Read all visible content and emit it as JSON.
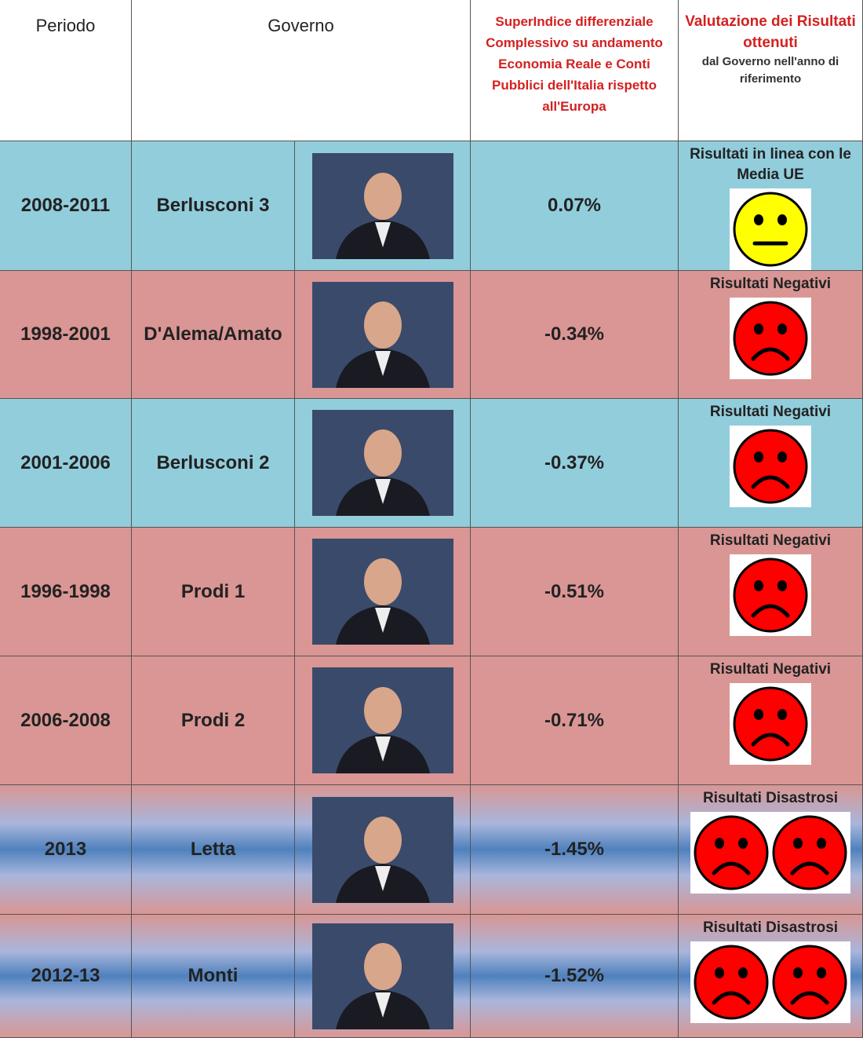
{
  "header": {
    "period": "Periodo",
    "government": "Governo",
    "index": "SuperIndice differenziale Complessivo su andamento Economia Reale e Conti Pubblici dell'Italia rispetto all'Europa",
    "rating_title": "Valutazione dei Risultati ottenuti",
    "rating_note": "dal Governo nell'anno di riferimento"
  },
  "table": {
    "rows": [
      {
        "period": "2008-2011",
        "government": "Berlusconi 3",
        "index": "0.07%",
        "rating": "Risultati in linea con le Media UE",
        "background": "blue",
        "icon": {
          "count": 1,
          "color": "#ffff00",
          "mood": "neutral"
        }
      },
      {
        "period": "1998-2001",
        "government": "D'Alema/Amato",
        "index": "-0.34%",
        "rating": "Risultati Negativi",
        "background": "pink",
        "icon": {
          "count": 1,
          "color": "#ff0000",
          "mood": "sad"
        }
      },
      {
        "period": "2001-2006",
        "government": "Berlusconi 2",
        "index": "-0.37%",
        "rating": "Risultati Negativi",
        "background": "blue",
        "icon": {
          "count": 1,
          "color": "#ff0000",
          "mood": "sad"
        }
      },
      {
        "period": "1996-1998",
        "government": "Prodi 1",
        "index": "-0.51%",
        "rating": "Risultati Negativi",
        "background": "pink",
        "icon": {
          "count": 1,
          "color": "#ff0000",
          "mood": "sad"
        }
      },
      {
        "period": "2006-2008",
        "government": "Prodi 2",
        "index": "-0.71%",
        "rating": "Risultati Negativi",
        "background": "pink",
        "icon": {
          "count": 1,
          "color": "#ff0000",
          "mood": "sad"
        }
      },
      {
        "period": "2013",
        "government": "Letta",
        "index": "-1.45%",
        "rating": "Risultati Disastrosi",
        "background": "gradient",
        "icon": {
          "count": 2,
          "color": "#ff0000",
          "mood": "sad"
        }
      },
      {
        "period": "2012-13",
        "government": "Monti",
        "index": "-1.52%",
        "rating": "Risultati Disastrosi",
        "background": "gradient",
        "icon": {
          "count": 2,
          "color": "#ff0000",
          "mood": "sad"
        }
      }
    ]
  }
}
